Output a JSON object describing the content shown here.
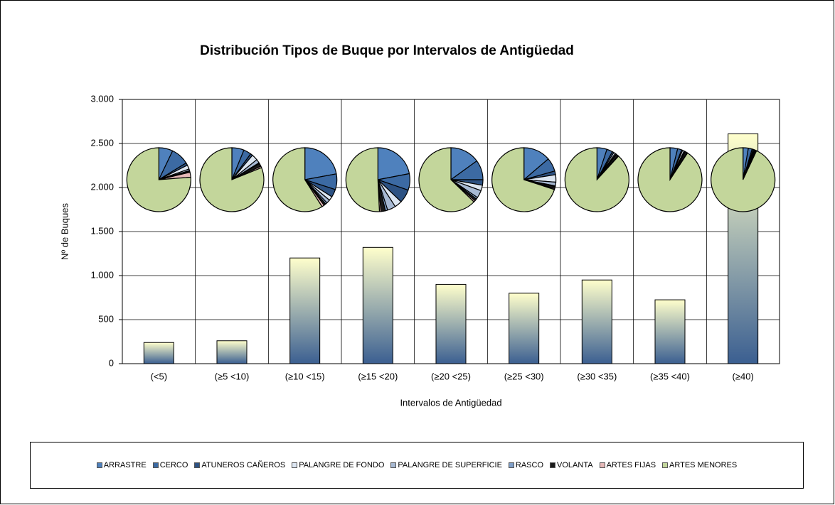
{
  "chart_data": {
    "type": "bar",
    "title": "Distribución Tipos de Buque por Intervalos de Antigüedad",
    "x_label": "Intervalos de Antigüedad",
    "y_label": "Nº de Buques",
    "categories": [
      "(<5)",
      "(≥5  <10)",
      "(≥10  <15)",
      "(≥15  <20)",
      "(≥20  <25)",
      "(≥25  <30)",
      "(≥30  <35)",
      "(≥35  <40)",
      "(≥40)"
    ],
    "ylim": [
      0,
      3000
    ],
    "yticks": [
      0,
      500,
      {
        "value": 1000,
        "label": "1.000"
      },
      {
        "value": 1500,
        "label": "1.500"
      },
      {
        "value": 2000,
        "label": "2.000"
      },
      {
        "value": 2500,
        "label": "2.500"
      },
      {
        "value": 3000,
        "label": "3.000"
      }
    ],
    "grid": true,
    "bar_gradient": [
      "#ffffcc",
      "#3b5f91"
    ],
    "series": [
      {
        "name": "ARRASTRE",
        "color": "#4f81bd",
        "values": [
          17,
          16,
          265,
          290,
          135,
          110,
          48,
          28,
          70
        ]
      },
      {
        "name": "CERCO",
        "color": "#3c6aa3",
        "values": [
          22,
          10,
          95,
          110,
          90,
          55,
          28,
          15,
          50
        ]
      },
      {
        "name": "ATUNEROS CAÑEROS",
        "color": "#2d5283",
        "values": [
          3,
          3,
          48,
          90,
          25,
          15,
          8,
          4,
          15
        ]
      },
      {
        "name": "PALANGRE DE FONDO",
        "color": "#dce6f2",
        "values": [
          5,
          8,
          25,
          50,
          25,
          30,
          8,
          6,
          12
        ]
      },
      {
        "name": "PALANGRE DE SUPERFICIE",
        "color": "#a7b9d3",
        "values": [
          2,
          5,
          22,
          55,
          35,
          15,
          5,
          3,
          10
        ]
      },
      {
        "name": "RASCO",
        "color": "#7f9fc8",
        "values": [
          1,
          1,
          10,
          15,
          8,
          3,
          2,
          2,
          5
        ]
      },
      {
        "name": "VOLANTA",
        "color": "#1a1a1a",
        "values": [
          1,
          4,
          12,
          30,
          10,
          8,
          10,
          7,
          15
        ]
      },
      {
        "name": "ARTES FIJAS",
        "color": "#e6b9b8",
        "values": [
          6,
          2,
          15,
          10,
          7,
          4,
          3,
          2,
          5
        ]
      },
      {
        "name": "ARTES MENORES",
        "color": "#c3d69b",
        "values": [
          183,
          211,
          708,
          670,
          565,
          560,
          838,
          658,
          2428
        ]
      }
    ]
  }
}
